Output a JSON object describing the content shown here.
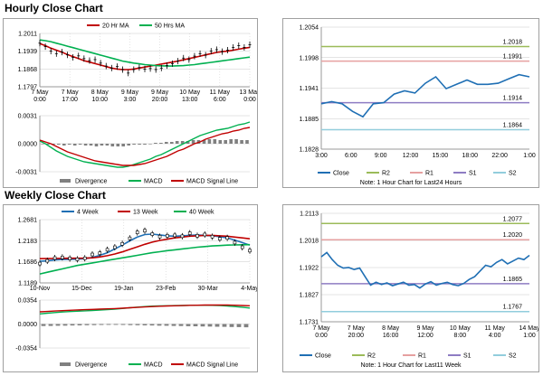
{
  "sections": {
    "hourly_title": "Hourly Close Chart",
    "weekly_title": "Weekly Close Chart"
  },
  "colors": {
    "price": "#000000",
    "ma_short": "#c00000",
    "ma_long": "#00b050",
    "divergence": "#808080",
    "macd": "#00b050",
    "macd_signal": "#c00000",
    "close_line": "#1f6fb4",
    "r2": "#9bbb59",
    "r1": "#e6a0a0",
    "s1": "#8e7cc3",
    "s2": "#92cddc",
    "grid": "#c8c8c8",
    "axis": "#808080"
  },
  "chart_data": [
    {
      "id": "hourly-price",
      "type": "line",
      "legend": [
        "20 Hr MA",
        "50 Hrs MA"
      ],
      "ylim": [
        1.1797,
        1.2011
      ],
      "yticks": [
        "1.2011",
        "1.1939",
        "1.1868",
        "1.1797"
      ],
      "xticks": [
        [
          "7 May",
          "0:00"
        ],
        [
          "7 May",
          "17:00"
        ],
        [
          "8 May",
          "10:00"
        ],
        [
          "9 May",
          "3:00"
        ],
        [
          "9 May",
          "20:00"
        ],
        [
          "10 May",
          "13:00"
        ],
        [
          "11 May",
          "6:00"
        ],
        [
          "13 May",
          "0:00"
        ]
      ],
      "series": [
        {
          "name": "Close",
          "values": [
            1.1972,
            1.1958,
            1.194,
            1.193,
            1.1936,
            1.1925,
            1.1915,
            1.1921,
            1.191,
            1.1902,
            1.1906,
            1.1892,
            1.188,
            1.1872,
            1.1878,
            1.1866,
            1.1852,
            1.1866,
            1.1874,
            1.1868,
            1.187,
            1.1866,
            1.1872,
            1.1882,
            1.189,
            1.19,
            1.1912,
            1.1906,
            1.192,
            1.193,
            1.1924,
            1.194,
            1.1946,
            1.1938,
            1.1944,
            1.1955,
            1.1962,
            1.1955,
            1.1966
          ]
        },
        {
          "name": "20 Hr MA",
          "values": [
            1.197,
            1.1962,
            1.1952,
            1.1944,
            1.1936,
            1.1926,
            1.1918,
            1.191,
            1.1902,
            1.1896,
            1.189,
            1.1884,
            1.1878,
            1.1872,
            1.1868,
            1.1866,
            1.1866,
            1.1868,
            1.1872,
            1.1876,
            1.188,
            1.1884,
            1.1888,
            1.1892,
            1.1896,
            1.19,
            1.1905,
            1.191,
            1.1915,
            1.192,
            1.1925,
            1.193,
            1.1935,
            1.1938,
            1.194,
            1.1944,
            1.1948,
            1.1952,
            1.1955
          ]
        },
        {
          "name": "50 Hrs MA",
          "values": [
            1.1985,
            1.1982,
            1.1978,
            1.1972,
            1.1966,
            1.196,
            1.1954,
            1.1948,
            1.1942,
            1.1936,
            1.193,
            1.1924,
            1.1918,
            1.1912,
            1.1906,
            1.19,
            1.1896,
            1.1892,
            1.1889,
            1.1886,
            1.1884,
            1.1882,
            1.1881,
            1.188,
            1.188,
            1.1881,
            1.1882,
            1.1884,
            1.1886,
            1.1889,
            1.1892,
            1.1895,
            1.1898,
            1.1901,
            1.1904,
            1.1907,
            1.191,
            1.1913,
            1.1916
          ]
        }
      ]
    },
    {
      "id": "hourly-macd",
      "type": "bar",
      "legend": [
        "Divergence",
        "MACD",
        "MACD Signal Line"
      ],
      "ylim": [
        -0.0031,
        0.0031
      ],
      "yticks": [
        "0.0031",
        "0.0000",
        "-0.0031"
      ],
      "series": [
        {
          "name": "Divergence",
          "values": [
            0.0,
            -0.0001,
            -0.0001,
            -0.0001,
            -0.0002,
            -0.0001,
            -0.0002,
            -0.0001,
            -0.0002,
            -0.0002,
            -0.0003,
            -0.0002,
            -0.0002,
            -0.0003,
            -0.0003,
            -0.0003,
            -0.0002,
            -0.0001,
            -0.0001,
            -0.0001,
            0.0,
            0.0001,
            0.0001,
            0.0002,
            0.0002,
            0.0003,
            0.0003,
            0.0003,
            0.0004,
            0.0004,
            0.0004,
            0.0005,
            0.0005,
            0.0004,
            0.0004,
            0.0005,
            0.0005,
            0.0004,
            0.0004
          ]
        },
        {
          "name": "MACD",
          "values": [
            0.0003,
            0.0,
            -0.0004,
            -0.0008,
            -0.0011,
            -0.0014,
            -0.0016,
            -0.0018,
            -0.002,
            -0.0021,
            -0.0022,
            -0.0023,
            -0.0024,
            -0.0025,
            -0.0026,
            -0.0026,
            -0.0025,
            -0.0023,
            -0.0021,
            -0.0019,
            -0.0017,
            -0.0014,
            -0.0012,
            -0.0009,
            -0.0006,
            -0.0003,
            0.0,
            0.0003,
            0.0006,
            0.0009,
            0.0011,
            0.0013,
            0.0015,
            0.0016,
            0.0017,
            0.0019,
            0.0021,
            0.0022,
            0.0024
          ]
        },
        {
          "name": "MACD Signal Line",
          "values": [
            0.0004,
            0.0002,
            0.0,
            -0.0003,
            -0.0006,
            -0.0009,
            -0.0011,
            -0.0013,
            -0.0015,
            -0.0017,
            -0.0019,
            -0.002,
            -0.0021,
            -0.0022,
            -0.0023,
            -0.0024,
            -0.0024,
            -0.0024,
            -0.0023,
            -0.0022,
            -0.002,
            -0.0018,
            -0.0016,
            -0.0014,
            -0.0011,
            -0.0008,
            -0.0006,
            -0.0003,
            0.0,
            0.0002,
            0.0005,
            0.0007,
            0.0009,
            0.0011,
            0.0012,
            0.0014,
            0.0015,
            0.0017,
            0.0018
          ]
        }
      ]
    },
    {
      "id": "hourly-pivot",
      "type": "line",
      "ylim": [
        1.1828,
        1.2054
      ],
      "yticks": [
        "1.2054",
        "1.1998",
        "1.1941",
        "1.1885",
        "1.1828"
      ],
      "xticks": [
        "3:00",
        "6:00",
        "9:00",
        "12:00",
        "15:00",
        "18:00",
        "22:00",
        "1:00"
      ],
      "series": [
        {
          "name": "Close",
          "values": [
            1.1912,
            1.1916,
            1.1912,
            1.1898,
            1.1888,
            1.1912,
            1.1914,
            1.193,
            1.1936,
            1.1932,
            1.195,
            1.1962,
            1.194,
            1.1948,
            1.1956,
            1.1948,
            1.1948,
            1.195,
            1.1958,
            1.1966,
            1.1962
          ]
        },
        {
          "name": "R2",
          "level": 1.2018
        },
        {
          "name": "R1",
          "level": 1.1991
        },
        {
          "name": "S1",
          "level": 1.1914
        },
        {
          "name": "S2",
          "level": 1.1864
        }
      ],
      "legend": [
        "Close",
        "R2",
        "R1",
        "S1",
        "S2"
      ],
      "level_labels": [
        "1.2018",
        "1.1991",
        "1.1914",
        "1.1864"
      ],
      "note": "Note: 1 Hour Chart for Last24 Hours"
    },
    {
      "id": "weekly-price",
      "type": "line",
      "legend": [
        "4 Week",
        "13 Week",
        "40 Week"
      ],
      "ylim": [
        1.1189,
        1.2681
      ],
      "yticks": [
        "1.2681",
        "1.2183",
        "1.1686",
        "1.1189"
      ],
      "xticks": [
        "10-Nov",
        "15-Dec",
        "19-Jan",
        "23-Feb",
        "30-Mar",
        "4-May"
      ],
      "series": [
        {
          "name": "Close",
          "values": [
            1.1645,
            1.171,
            1.1775,
            1.179,
            1.1765,
            1.1745,
            1.177,
            1.186,
            1.189,
            1.197,
            1.203,
            1.211,
            1.224,
            1.238,
            1.242,
            1.234,
            1.228,
            1.23,
            1.231,
            1.229,
            1.236,
            1.23,
            1.233,
            1.228,
            1.223,
            1.225,
            1.214,
            1.203,
            1.195
          ]
        },
        {
          "name": "4 Week",
          "values": [
            1.17,
            1.171,
            1.173,
            1.174,
            1.1745,
            1.175,
            1.176,
            1.179,
            1.184,
            1.19,
            1.199,
            1.208,
            1.218,
            1.227,
            1.233,
            1.234,
            1.232,
            1.23,
            1.229,
            1.23,
            1.231,
            1.232,
            1.231,
            1.23,
            1.228,
            1.225,
            1.22,
            1.214,
            1.208
          ]
        },
        {
          "name": "13 Week",
          "values": [
            1.176,
            1.1762,
            1.1765,
            1.1768,
            1.177,
            1.177,
            1.1772,
            1.178,
            1.18,
            1.183,
            1.187,
            1.192,
            1.198,
            1.204,
            1.21,
            1.215,
            1.219,
            1.222,
            1.225,
            1.227,
            1.229,
            1.23,
            1.231,
            1.231,
            1.23,
            1.229,
            1.227,
            1.225,
            1.223
          ]
        },
        {
          "name": "40 Week",
          "values": [
            1.14,
            1.144,
            1.148,
            1.152,
            1.156,
            1.16,
            1.163,
            1.166,
            1.169,
            1.172,
            1.175,
            1.178,
            1.181,
            1.184,
            1.187,
            1.19,
            1.1925,
            1.195,
            1.197,
            1.199,
            1.201,
            1.203,
            1.2045,
            1.206,
            1.207,
            1.208,
            1.2085,
            1.2088,
            1.209
          ]
        }
      ]
    },
    {
      "id": "weekly-macd",
      "type": "bar",
      "legend": [
        "Divergence",
        "MACD",
        "MACD Signal Line"
      ],
      "ylim": [
        -0.0354,
        0.0354
      ],
      "yticks": [
        "0.0354",
        "0.0000",
        "-0.0354"
      ],
      "series": [
        {
          "name": "Divergence",
          "values": [
            -0.003,
            -0.0028,
            -0.0026,
            -0.0024,
            -0.0022,
            -0.002,
            -0.0018,
            -0.0016,
            -0.0014,
            -0.0012,
            -0.0012,
            -0.0014,
            -0.0016,
            -0.0018,
            -0.002,
            -0.0022,
            -0.0024,
            -0.0026,
            -0.0028,
            -0.003,
            -0.0032,
            -0.0034,
            -0.0036,
            -0.0038,
            -0.004,
            -0.0042,
            -0.0044,
            -0.0046,
            -0.0048
          ]
        },
        {
          "name": "MACD",
          "values": [
            0.015,
            0.016,
            0.017,
            0.0178,
            0.0185,
            0.019,
            0.0195,
            0.02,
            0.0206,
            0.0212,
            0.022,
            0.023,
            0.024,
            0.025,
            0.0258,
            0.0264,
            0.0268,
            0.027,
            0.0272,
            0.0274,
            0.0276,
            0.0278,
            0.0278,
            0.0276,
            0.0272,
            0.0266,
            0.0258,
            0.0248,
            0.0236
          ]
        },
        {
          "name": "MACD Signal Line",
          "values": [
            0.018,
            0.0186,
            0.0192,
            0.0198,
            0.0203,
            0.0208,
            0.0212,
            0.0216,
            0.022,
            0.0224,
            0.0228,
            0.0234,
            0.024,
            0.0246,
            0.0252,
            0.0258,
            0.0263,
            0.0267,
            0.027,
            0.0273,
            0.0276,
            0.0278,
            0.028,
            0.0281,
            0.0281,
            0.028,
            0.0278,
            0.0274,
            0.027
          ]
        }
      ]
    },
    {
      "id": "weekly-pivot",
      "type": "line",
      "ylim": [
        1.1731,
        1.2113
      ],
      "yticks": [
        "1.2113",
        "1.2018",
        "1.1922",
        "1.1827",
        "1.1731"
      ],
      "xticks": [
        [
          "7 May",
          "0:00"
        ],
        [
          "7 May",
          "20:00"
        ],
        [
          "8 May",
          "16:00"
        ],
        [
          "9 May",
          "12:00"
        ],
        [
          "10 May",
          "8:00"
        ],
        [
          "11 May",
          "4:00"
        ],
        [
          "14 May",
          "1:00"
        ]
      ],
      "series": [
        {
          "name": "Close",
          "values": [
            1.196,
            1.1975,
            1.195,
            1.193,
            1.192,
            1.1922,
            1.1915,
            1.192,
            1.189,
            1.186,
            1.187,
            1.1862,
            1.1868,
            1.1858,
            1.1864,
            1.187,
            1.186,
            1.1862,
            1.185,
            1.1864,
            1.1872,
            1.186,
            1.1866,
            1.187,
            1.1862,
            1.1858,
            1.1866,
            1.188,
            1.189,
            1.191,
            1.193,
            1.1925,
            1.194,
            1.195,
            1.1935,
            1.1945,
            1.1955,
            1.195,
            1.1965
          ]
        },
        {
          "name": "R2",
          "level": 1.2077
        },
        {
          "name": "R1",
          "level": 1.202
        },
        {
          "name": "S1",
          "level": 1.1865
        },
        {
          "name": "S2",
          "level": 1.1767
        }
      ],
      "legend": [
        "Close",
        "R2",
        "R1",
        "S1",
        "S2"
      ],
      "level_labels": [
        "1.2077",
        "1.2020",
        "1.1865",
        "1.1767"
      ],
      "note": "Note: 1 Hour Chart for Last11 Week"
    }
  ]
}
